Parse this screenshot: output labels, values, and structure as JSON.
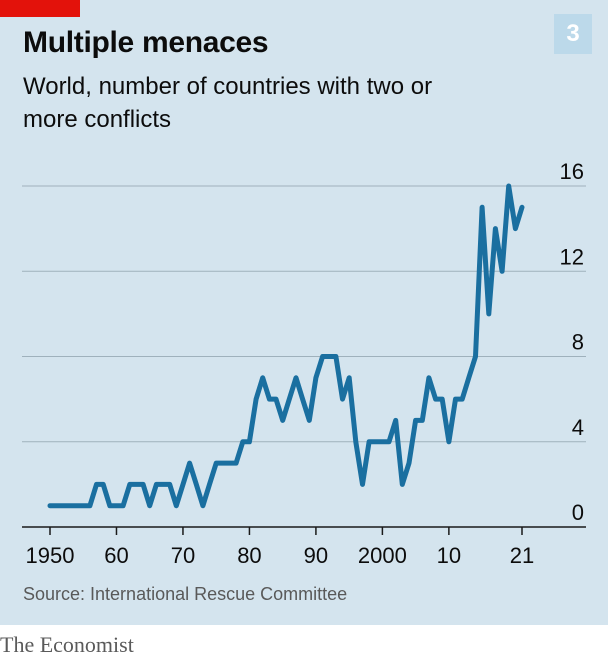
{
  "badge": "3",
  "title": "Multiple menaces",
  "subtitle": "World, number of countries with two or more conflicts",
  "source": "Source: International Rescue Committee",
  "footer": "The Economist",
  "colors": {
    "background": "#d4e4ee",
    "line": "#1a6fa0",
    "accent": "#e3120b",
    "badge": "#bcd9ea",
    "grid": "#9fb1bc"
  },
  "chart_data": {
    "type": "line",
    "title": "Multiple menaces",
    "subtitle": "World, number of countries with two or more conflicts",
    "xlabel": "",
    "ylabel": "",
    "xlim": [
      1950,
      2021
    ],
    "ylim": [
      0,
      16
    ],
    "y_ticks": [
      0,
      4,
      8,
      12,
      16
    ],
    "x_ticks": [
      {
        "value": 1950,
        "label": "1950"
      },
      {
        "value": 1960,
        "label": "60"
      },
      {
        "value": 1970,
        "label": "70"
      },
      {
        "value": 1980,
        "label": "80"
      },
      {
        "value": 1990,
        "label": "90"
      },
      {
        "value": 2000,
        "label": "2000"
      },
      {
        "value": 2010,
        "label": "10"
      },
      {
        "value": 2021,
        "label": "21"
      }
    ],
    "grid": true,
    "series": [
      {
        "x": [
          1950,
          1951,
          1952,
          1953,
          1954,
          1955,
          1956,
          1957,
          1958,
          1959,
          1960,
          1961,
          1962,
          1963,
          1964,
          1965,
          1966,
          1967,
          1968,
          1969,
          1970,
          1971,
          1972,
          1973,
          1974,
          1975,
          1976,
          1977,
          1978,
          1979,
          1980,
          1981,
          1982,
          1983,
          1984,
          1985,
          1986,
          1987,
          1988,
          1989,
          1990,
          1991,
          1992,
          1993,
          1994,
          1995,
          1996,
          1997,
          1998,
          1999,
          2000,
          2001,
          2002,
          2003,
          2004,
          2005,
          2006,
          2007,
          2008,
          2009,
          2010,
          2011,
          2012,
          2013,
          2014,
          2015,
          2016,
          2017,
          2018,
          2019,
          2020,
          2021
        ],
        "values": [
          1,
          1,
          1,
          1,
          1,
          1,
          1,
          2,
          2,
          1,
          1,
          1,
          2,
          2,
          2,
          1,
          2,
          2,
          2,
          1,
          2,
          3,
          2,
          1,
          2,
          3,
          3,
          3,
          3,
          4,
          4,
          6,
          7,
          6,
          6,
          5,
          6,
          7,
          6,
          5,
          7,
          8,
          8,
          8,
          6,
          7,
          4,
          2,
          4,
          4,
          4,
          4,
          5,
          2,
          3,
          5,
          5,
          7,
          6,
          6,
          4,
          6,
          6,
          7,
          8,
          15,
          10,
          14,
          12,
          16,
          14,
          15
        ]
      }
    ]
  }
}
